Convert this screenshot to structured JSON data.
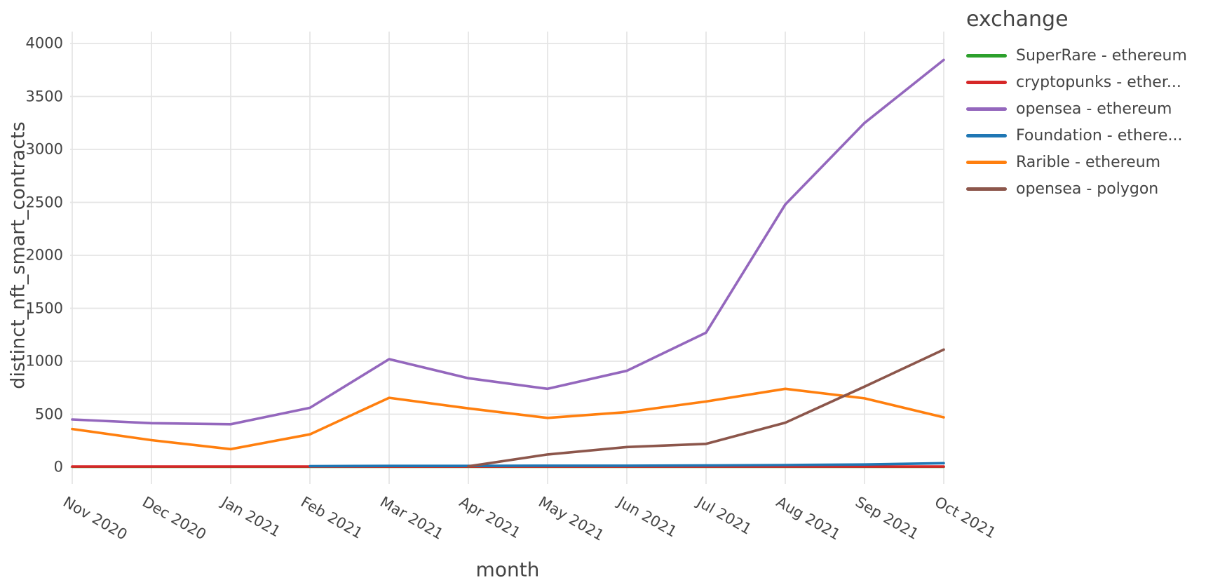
{
  "chart_data": {
    "type": "line",
    "title": "",
    "xlabel": "month",
    "ylabel": "distinct_nft_smart_contracts",
    "legend_title": "exchange",
    "legend_position": "top-right",
    "grid": true,
    "categories": [
      "Nov 2020",
      "Dec 2020",
      "Jan 2021",
      "Feb 2021",
      "Mar 2021",
      "Apr 2021",
      "May 2021",
      "Jun 2021",
      "Jul 2021",
      "Aug 2021",
      "Sep 2021",
      "Oct 2021"
    ],
    "y_ticks": [
      0,
      500,
      1000,
      1500,
      2000,
      2500,
      3000,
      3500,
      4000
    ],
    "ylim": [
      0,
      4000
    ],
    "series": [
      {
        "id": "superrare-ethereum",
        "name": "SuperRare - ethereum",
        "label": "SuperRare - ethereum",
        "color": "#2ca02c",
        "values": [
          3,
          3,
          3,
          3,
          3,
          3,
          3,
          3,
          3,
          3,
          3,
          3
        ]
      },
      {
        "id": "cryptopunks-ethereum",
        "name": "cryptopunks - ethereum",
        "label": "cryptopunks - ether...",
        "color": "#d62728",
        "values": [
          6,
          6,
          6,
          6,
          6,
          6,
          6,
          6,
          6,
          6,
          6,
          6
        ]
      },
      {
        "id": "opensea-ethereum",
        "name": "opensea - ethereum",
        "label": "opensea - ethereum",
        "color": "#9467bd",
        "values": [
          450,
          415,
          405,
          560,
          1020,
          840,
          740,
          910,
          1270,
          2480,
          3250,
          3845
        ]
      },
      {
        "id": "foundation-ethereum",
        "name": "Foundation - ethereum",
        "label": "Foundation - ethere...",
        "color": "#1f77b4",
        "values": [
          null,
          null,
          null,
          10,
          12,
          12,
          14,
          14,
          16,
          20,
          25,
          38
        ]
      },
      {
        "id": "rarible-ethereum",
        "name": "Rarible - ethereum",
        "label": "Rarible - ethereum",
        "color": "#ff7f0e",
        "values": [
          360,
          255,
          170,
          310,
          655,
          555,
          465,
          520,
          620,
          740,
          650,
          470
        ]
      },
      {
        "id": "opensea-polygon",
        "name": "opensea - polygon",
        "label": "opensea - polygon",
        "color": "#8c564b",
        "values": [
          null,
          null,
          null,
          null,
          null,
          8,
          120,
          190,
          220,
          420,
          760,
          1110
        ]
      }
    ]
  }
}
